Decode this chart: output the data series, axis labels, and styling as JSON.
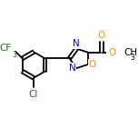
{
  "bg_color": "#ffffff",
  "bond_color": "#000000",
  "atom_colors": {
    "N": "#0000ff",
    "O": "#ff8c00",
    "Cl": "#008000",
    "F": "#008000",
    "C": "#000000"
  },
  "bond_width": 1.3,
  "figsize": [
    1.52,
    1.52
  ],
  "dpi": 100
}
